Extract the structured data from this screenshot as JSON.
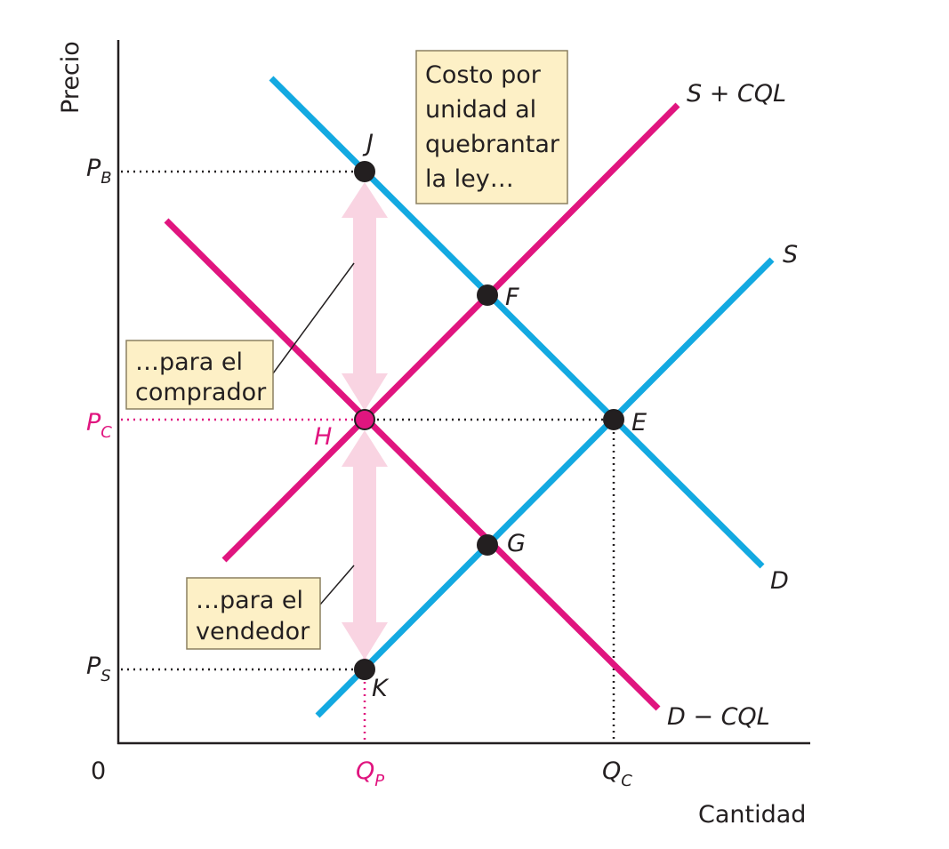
{
  "axes": {
    "y_label": "Precio",
    "x_label": "Cantidad",
    "origin": "0"
  },
  "curves": {
    "demand": "D",
    "supply": "S",
    "supply_plus_cost": "S + CQL",
    "demand_minus_cost": "D − CQL"
  },
  "points": {
    "J": "J",
    "F": "F",
    "E": "E",
    "H": "H",
    "G": "G",
    "K": "K"
  },
  "price_labels": {
    "buyer": {
      "main": "P",
      "sub": "B"
    },
    "competitive": {
      "main": "P",
      "sub": "C"
    },
    "seller": {
      "main": "P",
      "sub": "S"
    }
  },
  "quantity_labels": {
    "prohibited": {
      "main": "Q",
      "sub": "P"
    },
    "competitive": {
      "main": "Q",
      "sub": "C"
    }
  },
  "annotations": {
    "cost": [
      "Costo por",
      "unidad al",
      "quebrantar",
      "la ley…"
    ],
    "buyer": [
      "…para el",
      "comprador"
    ],
    "seller": [
      "…para el",
      "vendedor"
    ]
  }
}
